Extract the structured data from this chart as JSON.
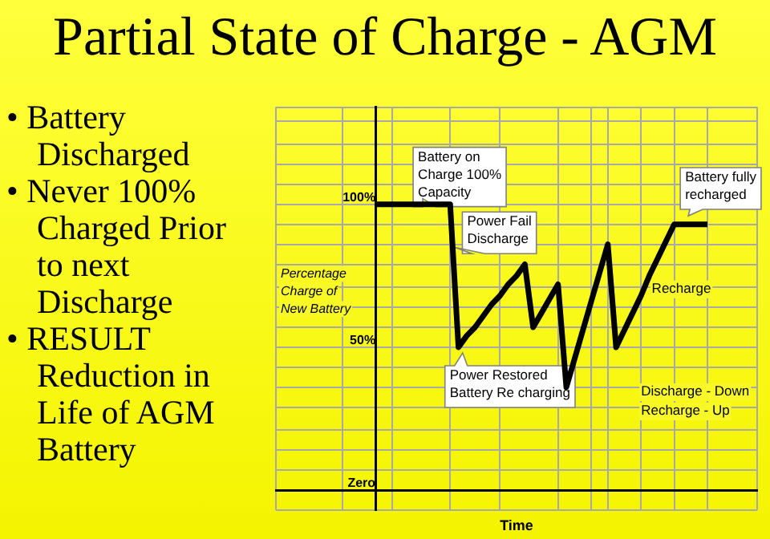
{
  "chart_data": {
    "type": "line",
    "title": "Partial State of Charge - AGM",
    "xlabel": "Time",
    "ylabel": "Percentage Charge of New Battery",
    "categories": [
      null,
      null,
      null,
      null,
      null,
      null,
      null,
      null,
      null,
      null,
      null,
      null,
      null,
      null,
      null,
      null,
      null,
      null,
      null,
      null,
      null,
      null,
      null,
      null,
      null,
      null,
      null,
      null,
      null,
      null,
      null,
      null,
      null,
      null,
      null,
      null,
      null,
      null,
      null,
      null,
      null,
      null,
      null,
      null,
      null,
      null,
      null,
      null,
      null,
      null,
      null,
      null,
      null,
      null,
      null,
      null,
      null,
      null,
      null
    ],
    "series": [
      {
        "color": "#000000",
        "values": [
          null,
          null,
          null,
          null,
          null,
          null,
          null,
          null,
          null,
          null,
          null,
          null,
          100,
          100,
          100,
          100,
          100,
          100,
          100,
          100,
          100,
          100,
          50,
          54,
          57,
          61,
          65,
          68,
          72,
          75,
          79,
          57,
          62,
          67,
          72,
          36,
          46,
          56,
          66,
          76,
          86,
          50,
          56,
          62,
          68,
          75,
          81,
          87,
          93,
          93,
          93,
          93,
          93,
          null,
          null,
          null,
          null,
          null,
          null
        ]
      }
    ],
    "ylim": [
      -7,
      134
    ],
    "yticks": [
      {
        "value": -7,
        "label": null
      },
      {
        "value": 0,
        "label": "Zero"
      },
      {
        "value": 7,
        "label": null
      },
      {
        "value": 14,
        "label": null
      },
      {
        "value": 21,
        "label": null
      },
      {
        "value": 29,
        "label": null
      },
      {
        "value": 36,
        "label": null
      },
      {
        "value": 43,
        "label": null
      },
      {
        "value": 50,
        "label": "50%"
      },
      {
        "value": 57,
        "label": null
      },
      {
        "value": 64,
        "label": null
      },
      {
        "value": 71,
        "label": null
      },
      {
        "value": 79,
        "label": null
      },
      {
        "value": 86,
        "label": null
      },
      {
        "value": 93,
        "label": null
      },
      {
        "value": 100,
        "label": "100%"
      },
      {
        "value": 107,
        "label": null
      },
      {
        "value": 114,
        "label": null
      },
      {
        "value": 121,
        "label": null
      },
      {
        "value": 129,
        "label": null
      },
      {
        "value": 134,
        "label": null
      }
    ],
    "tick_labels": "y",
    "grid": true,
    "line_style": "solid",
    "legend": false,
    "annotations": [
      "• Battery Discharged",
      "• Never 100% Charged Prior to next Discharge",
      "• RESULT Reduction in Life of AGM Battery",
      "Recharge",
      "Discharge - Down Recharge - Up",
      "Battery on Charge 100% Capacity",
      "Power Fail Discharge",
      "Power Restored Battery Re charging",
      "Battery fully recharged"
    ]
  }
}
